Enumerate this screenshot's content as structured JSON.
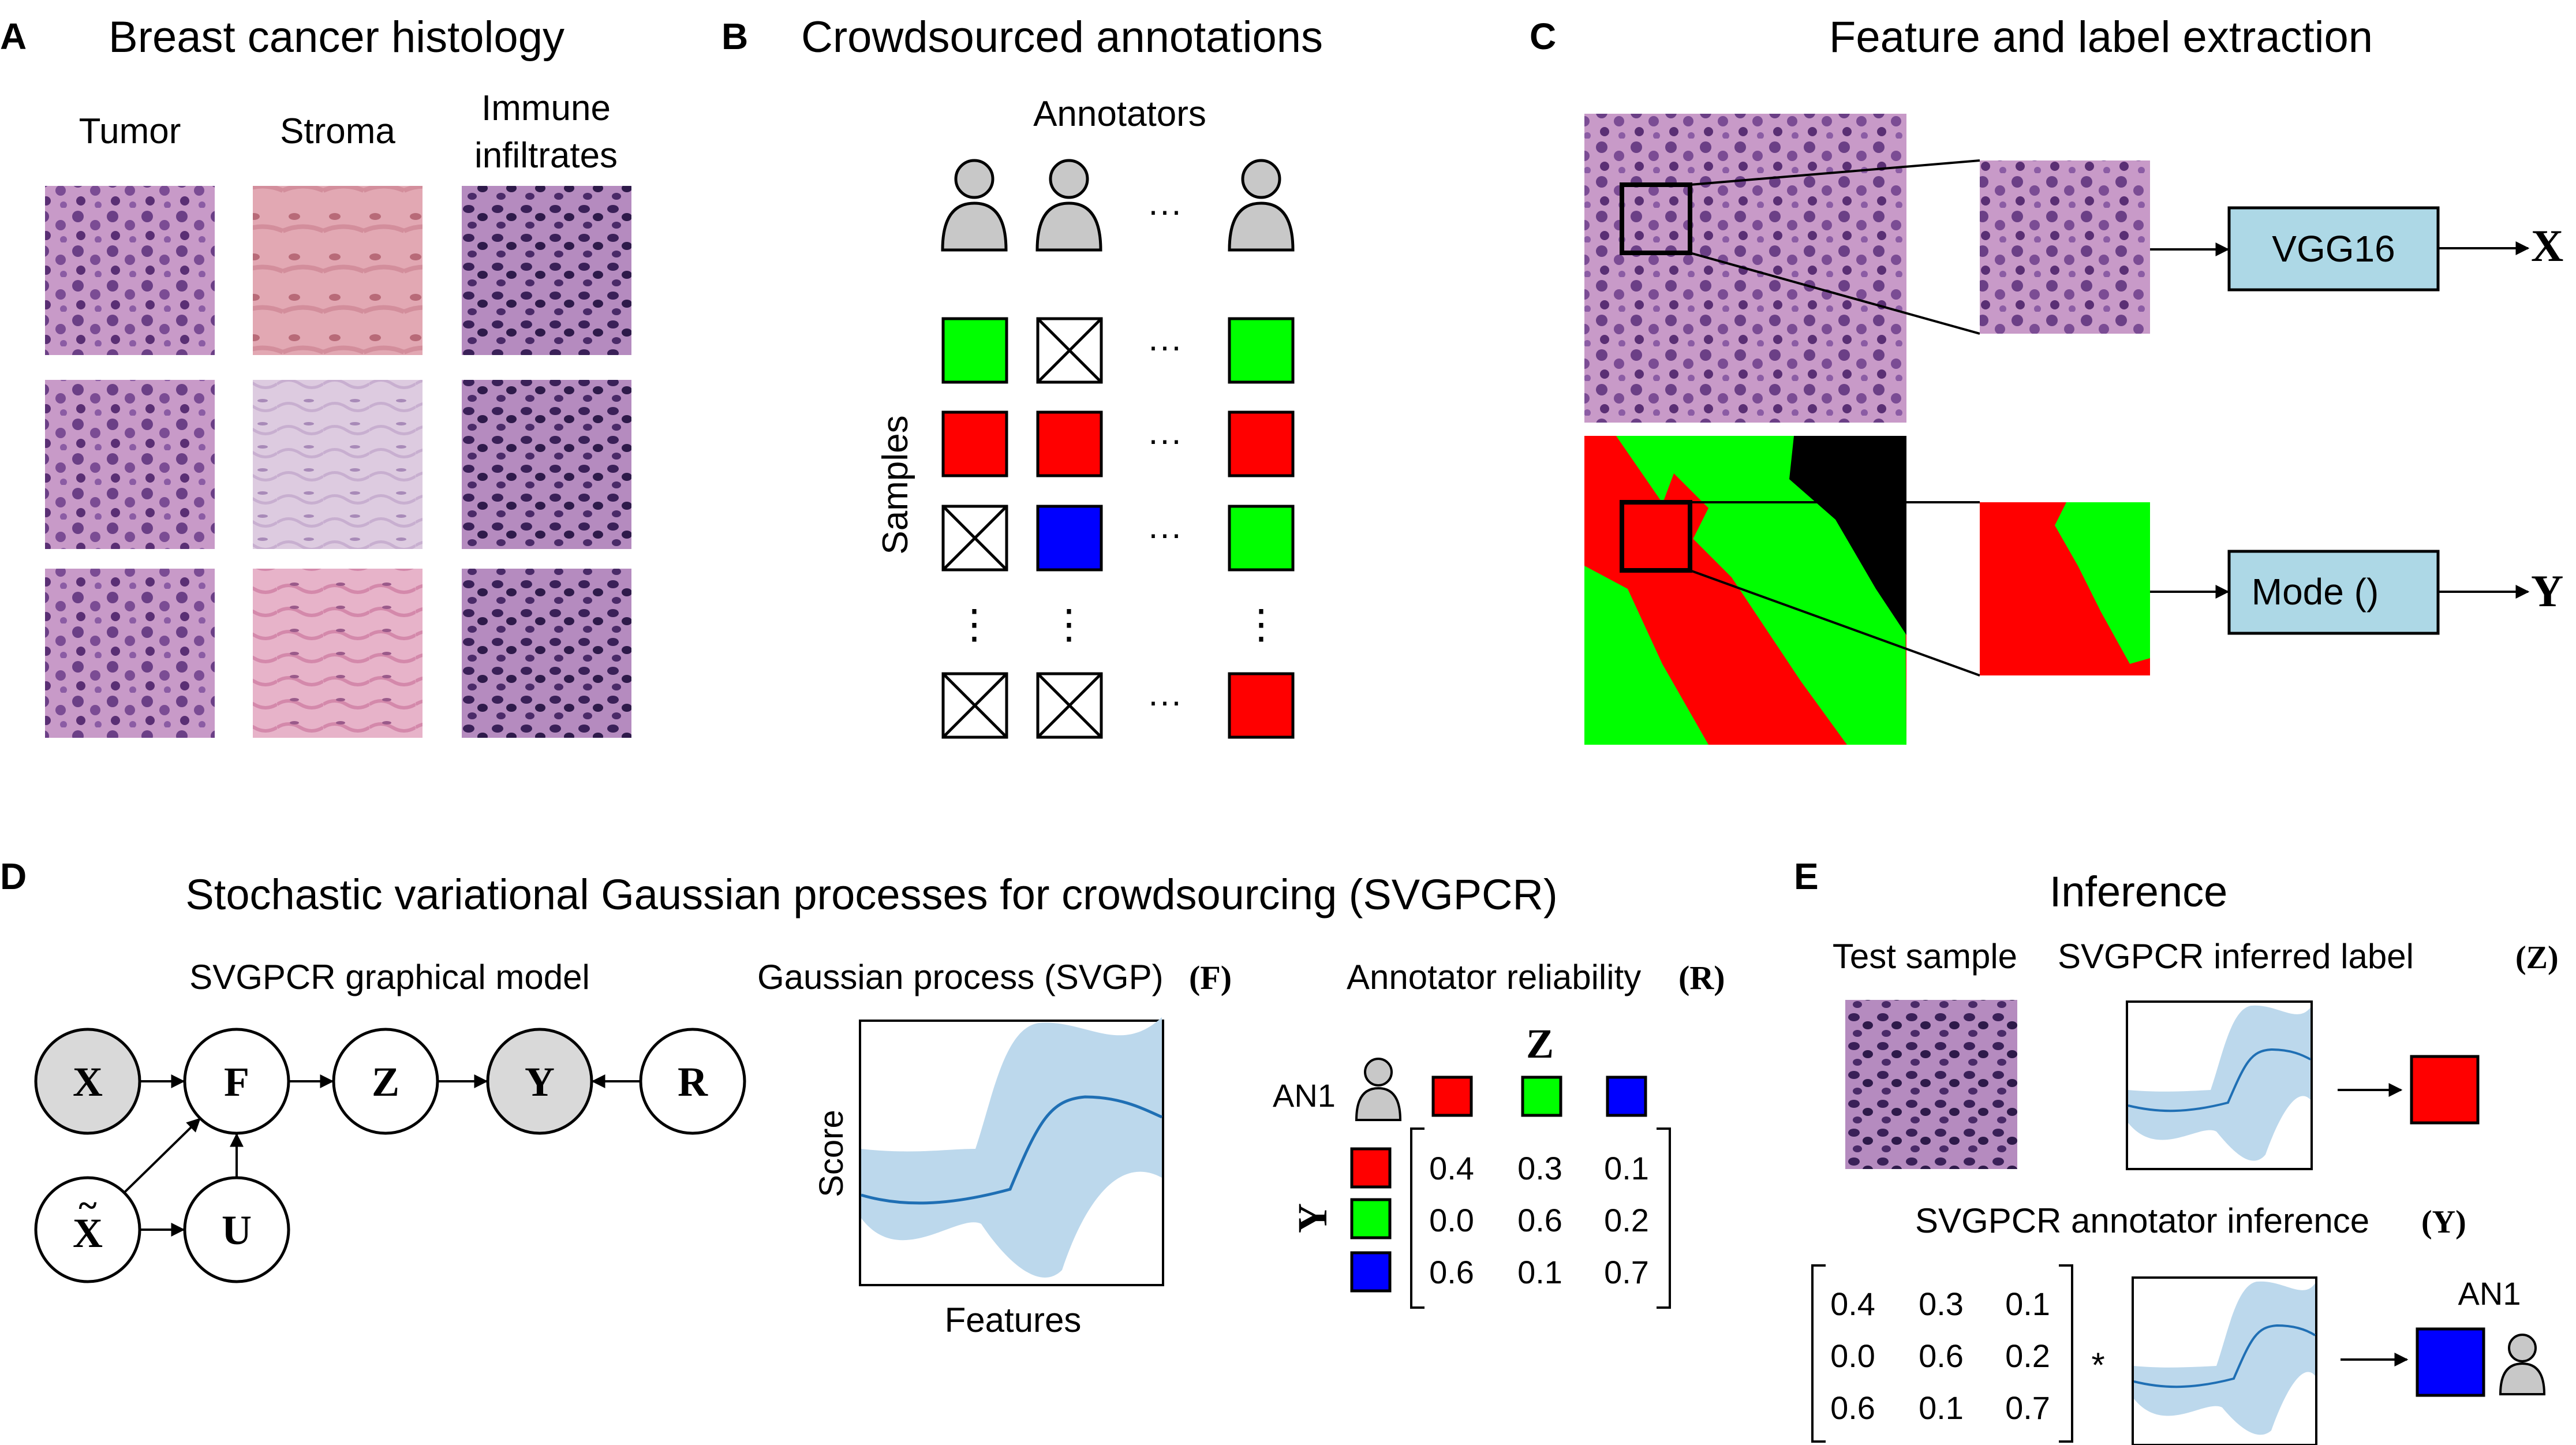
{
  "panels": {
    "a": {
      "letter": "A",
      "title": "Breast cancer histology",
      "col1": "Tumor",
      "col2": "Stroma",
      "col3_line1": "Immune",
      "col3_line2": "infiltrates"
    },
    "b": {
      "letter": "B",
      "title": "Crowdsourced annotations",
      "annotators": "Annotators",
      "samples": "Samples",
      "ellipsis": "···",
      "vellipsis": "⋮"
    },
    "c": {
      "letter": "C",
      "title": "Feature and label extraction",
      "vgg": "VGG16",
      "mode": "Mode ()",
      "x": "X",
      "y": "Y"
    },
    "d": {
      "letter": "D",
      "title": "Stochastic variational Gaussian processes for crowdsourcing (SVGPCR)",
      "graph_title": "SVGPCR graphical model",
      "gp_title": "Gaussian process (SVGP) ",
      "gp_symbol": "(F)",
      "rel_title": "Annotator reliability ",
      "rel_symbol": "(R)",
      "nodes": {
        "x": "X",
        "f": "F",
        "z": "Z",
        "y": "Y",
        "r": "R",
        "xt": "X",
        "tilde": "~",
        "u": "U"
      },
      "score": "Score",
      "features": "Features",
      "an1": "AN1",
      "z": "Z",
      "y": "Y",
      "matrix": [
        [
          "0.4",
          "0.3",
          "0.1"
        ],
        [
          "0.0",
          "0.6",
          "0.2"
        ],
        [
          "0.6",
          "0.1",
          "0.7"
        ]
      ]
    },
    "e": {
      "letter": "E",
      "title": "Inference",
      "test_sample": "Test sample",
      "inferred_title": "SVGPCR inferred label ",
      "inferred_symbol": "(Z)",
      "annot_title": "SVGPCR annotator inference ",
      "annot_symbol": "(Y)",
      "star": "*",
      "an1": "AN1",
      "matrix": [
        [
          "0.4",
          "0.3",
          "0.1"
        ],
        [
          "0.0",
          "0.6",
          "0.2"
        ],
        [
          "0.6",
          "0.1",
          "0.7"
        ]
      ]
    }
  },
  "colors": {
    "green": "#00ff00",
    "red": "#ff0000",
    "blue": "#0000ff",
    "node_gray": "#d9d9d9",
    "person_gray": "#c8c8c8",
    "box_blue": "#add8e6",
    "gp_line": "#1f6fb4",
    "gp_band": "#bcd8ec"
  }
}
